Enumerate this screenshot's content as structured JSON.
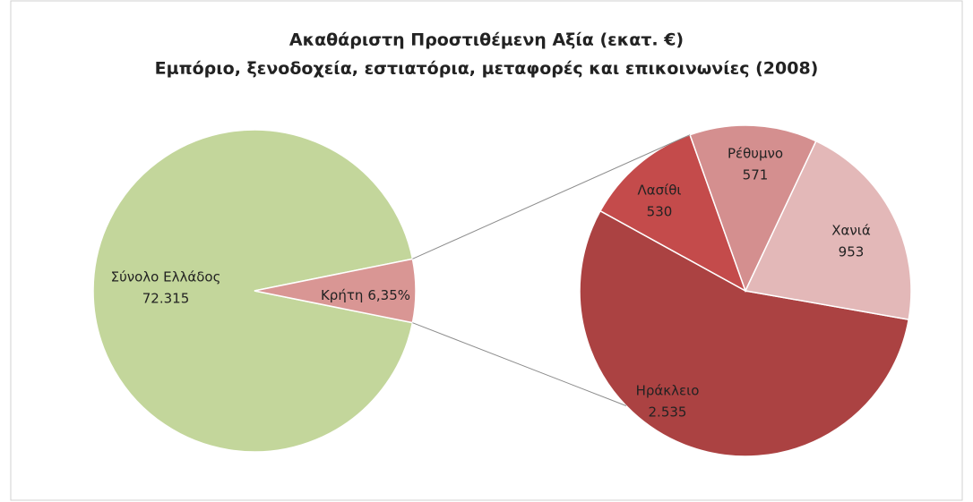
{
  "chart_data": {
    "type": "pie-of-pie",
    "title": "Ακαθάριστη Προστιθέμενη Αξία (εκατ. €)",
    "subtitle": "Εμπόριο, ξενοδοχεία, εστιατόρια, μεταφορές και επικοινωνίες (2008)",
    "categories": [
      "Σύνολο Ελλάδος",
      "Κρήτη"
    ],
    "values": [
      72315,
      6.35
    ],
    "value_labels": [
      "72.315",
      "6,35%"
    ],
    "colors": [
      "#c3d69b",
      "#d99694"
    ],
    "secondary": {
      "categories": [
        "Ηράκλειο",
        "Λασίθι",
        "Ρέθυμνο",
        "Χανιά"
      ],
      "values": [
        2535,
        530,
        571,
        953
      ],
      "value_labels": [
        "2.535",
        "530",
        "571",
        "953"
      ],
      "colors": [
        "#ab4242",
        "#c44b4b",
        "#d48f8f",
        "#e3b8b8"
      ]
    }
  }
}
